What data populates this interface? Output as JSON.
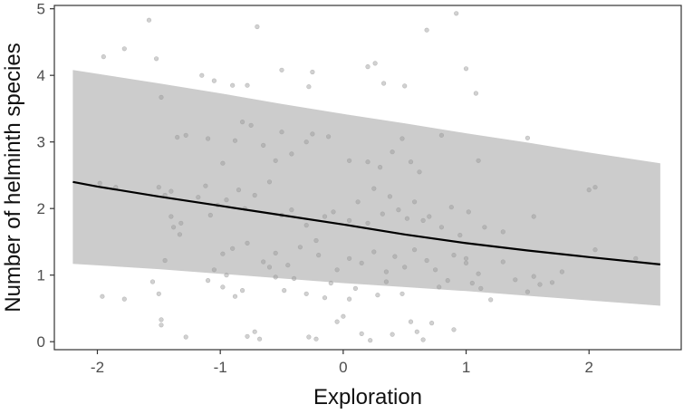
{
  "chart_data": {
    "type": "scatter",
    "xlabel": "Exploration",
    "ylabel": "Number of helminth species",
    "xlim": [
      -2.35,
      2.75
    ],
    "ylim": [
      -0.12,
      5.05
    ],
    "xticks": [
      -2,
      -1,
      0,
      1,
      2
    ],
    "xtick_labels": [
      "-2",
      "-1",
      "0",
      "1",
      "2"
    ],
    "yticks": [
      0,
      1,
      2,
      3,
      4,
      5
    ],
    "ytick_labels": [
      "0",
      "1",
      "2",
      "3",
      "4",
      "5"
    ],
    "grid": false,
    "legend": "none",
    "colors": {
      "ribbon": "#cccccc",
      "line": "#000000",
      "points": "#9a9a9a",
      "axis": "#333333",
      "text": "#111111",
      "border": "#333333"
    },
    "fit_line": {
      "x": [
        -2.2,
        -2.0,
        -1.5,
        -1.0,
        -0.5,
        0.0,
        0.5,
        1.0,
        1.5,
        2.0,
        2.58
      ],
      "y": [
        2.4,
        2.33,
        2.18,
        2.04,
        1.9,
        1.76,
        1.61,
        1.48,
        1.37,
        1.27,
        1.16
      ]
    },
    "ribbon": {
      "x": [
        -2.2,
        -1.5,
        -1.0,
        -0.5,
        0.0,
        0.5,
        1.0,
        1.5,
        2.0,
        2.58
      ],
      "lower": [
        1.17,
        1.09,
        1.02,
        0.95,
        0.88,
        0.82,
        0.76,
        0.69,
        0.62,
        0.54
      ],
      "upper": [
        4.08,
        3.88,
        3.73,
        3.57,
        3.42,
        3.28,
        3.13,
        2.99,
        2.84,
        2.68
      ]
    },
    "points": [
      [
        -1.96,
        0.68
      ],
      [
        -1.78,
        0.64
      ],
      [
        -1.55,
        0.9
      ],
      [
        -1.5,
        0.72
      ],
      [
        -1.48,
        0.33
      ],
      [
        -1.48,
        0.25
      ],
      [
        -1.45,
        1.22
      ],
      [
        -1.38,
        1.72
      ],
      [
        -1.33,
        1.61
      ],
      [
        -1.28,
        0.07
      ],
      [
        -1.1,
        0.92
      ],
      [
        -1.05,
        1.08
      ],
      [
        -0.98,
        0.82
      ],
      [
        -0.95,
        1.0
      ],
      [
        -0.88,
        0.68
      ],
      [
        -0.82,
        0.77
      ],
      [
        -0.78,
        0.08
      ],
      [
        -0.72,
        0.15
      ],
      [
        -0.68,
        0.04
      ],
      [
        -0.6,
        1.12
      ],
      [
        -0.55,
        0.97
      ],
      [
        -0.48,
        0.77
      ],
      [
        -0.4,
        0.95
      ],
      [
        -0.3,
        0.72
      ],
      [
        -0.28,
        0.07
      ],
      [
        -0.22,
        0.04
      ],
      [
        -0.15,
        0.66
      ],
      [
        -0.1,
        0.88
      ],
      [
        -0.05,
        0.3
      ],
      [
        0.0,
        0.38
      ],
      [
        0.05,
        0.64
      ],
      [
        0.1,
        0.8
      ],
      [
        0.15,
        0.12
      ],
      [
        0.22,
        0.02
      ],
      [
        0.28,
        0.7
      ],
      [
        0.35,
        0.9
      ],
      [
        0.4,
        0.11
      ],
      [
        0.48,
        0.72
      ],
      [
        0.55,
        0.3
      ],
      [
        0.6,
        0.15
      ],
      [
        0.65,
        0.03
      ],
      [
        0.72,
        0.28
      ],
      [
        0.78,
        0.82
      ],
      [
        0.85,
        0.92
      ],
      [
        0.9,
        0.18
      ],
      [
        1.0,
        1.18
      ],
      [
        1.05,
        0.88
      ],
      [
        1.12,
        0.8
      ],
      [
        1.2,
        0.63
      ],
      [
        1.3,
        1.2
      ],
      [
        1.4,
        0.93
      ],
      [
        1.5,
        0.75
      ],
      [
        1.55,
        0.98
      ],
      [
        1.6,
        0.86
      ],
      [
        1.7,
        0.89
      ],
      [
        1.78,
        1.05
      ],
      [
        2.05,
        1.38
      ],
      [
        2.38,
        1.25
      ],
      [
        -1.58,
        4.83
      ],
      [
        -1.52,
        4.25
      ],
      [
        -1.48,
        3.67
      ],
      [
        -1.35,
        3.07
      ],
      [
        -1.15,
        4.0
      ],
      [
        -1.05,
        3.92
      ],
      [
        -0.9,
        3.85
      ],
      [
        -0.78,
        3.85
      ],
      [
        -0.7,
        4.73
      ],
      [
        -0.5,
        4.08
      ],
      [
        -0.28,
        3.83
      ],
      [
        -0.25,
        4.05
      ],
      [
        0.2,
        4.13
      ],
      [
        0.26,
        4.18
      ],
      [
        0.33,
        3.88
      ],
      [
        0.5,
        3.84
      ],
      [
        0.68,
        4.68
      ],
      [
        0.92,
        4.93
      ],
      [
        1.0,
        4.1
      ],
      [
        1.08,
        3.73
      ],
      [
        1.5,
        3.06
      ],
      [
        -1.95,
        4.28
      ],
      [
        -1.78,
        4.4
      ],
      [
        -1.98,
        2.38
      ],
      [
        -1.85,
        2.32
      ],
      [
        -1.5,
        2.32
      ],
      [
        -1.45,
        2.2
      ],
      [
        -1.4,
        1.88
      ],
      [
        -1.4,
        2.26
      ],
      [
        -1.32,
        1.78
      ],
      [
        -1.18,
        2.17
      ],
      [
        -1.12,
        2.34
      ],
      [
        -1.08,
        1.9
      ],
      [
        -1.02,
        2.05
      ],
      [
        -0.95,
        2.13
      ],
      [
        -0.85,
        2.28
      ],
      [
        -0.8,
        2.0
      ],
      [
        -0.72,
        2.2
      ],
      [
        -0.6,
        2.4
      ],
      [
        -0.5,
        1.9
      ],
      [
        -0.42,
        1.98
      ],
      [
        -0.3,
        1.75
      ],
      [
        -0.22,
        1.52
      ],
      [
        -0.15,
        1.88
      ],
      [
        -0.08,
        1.95
      ],
      [
        0.05,
        1.82
      ],
      [
        0.12,
        2.1
      ],
      [
        0.2,
        1.78
      ],
      [
        0.25,
        2.3
      ],
      [
        0.32,
        1.92
      ],
      [
        0.38,
        2.18
      ],
      [
        0.45,
        1.98
      ],
      [
        0.52,
        1.85
      ],
      [
        0.58,
        2.1
      ],
      [
        0.65,
        1.82
      ],
      [
        0.7,
        1.88
      ],
      [
        0.8,
        1.72
      ],
      [
        0.88,
        2.02
      ],
      [
        0.95,
        1.6
      ],
      [
        1.02,
        1.95
      ],
      [
        1.15,
        1.72
      ],
      [
        1.3,
        1.65
      ],
      [
        1.55,
        1.88
      ],
      [
        2.0,
        2.28
      ],
      [
        2.05,
        2.32
      ],
      [
        -1.28,
        3.1
      ],
      [
        -1.1,
        3.05
      ],
      [
        -0.98,
        2.68
      ],
      [
        -0.88,
        3.02
      ],
      [
        -0.82,
        3.3
      ],
      [
        -0.75,
        3.25
      ],
      [
        -0.65,
        2.95
      ],
      [
        -0.55,
        2.72
      ],
      [
        -0.5,
        3.15
      ],
      [
        -0.42,
        2.82
      ],
      [
        -0.3,
        3.0
      ],
      [
        -0.25,
        3.12
      ],
      [
        -0.12,
        3.08
      ],
      [
        0.05,
        2.72
      ],
      [
        0.2,
        2.7
      ],
      [
        0.3,
        2.62
      ],
      [
        0.4,
        2.85
      ],
      [
        0.48,
        3.05
      ],
      [
        0.55,
        2.7
      ],
      [
        0.62,
        2.55
      ],
      [
        0.8,
        3.1
      ],
      [
        1.1,
        2.72
      ],
      [
        -0.98,
        1.32
      ],
      [
        -0.9,
        1.4
      ],
      [
        -0.78,
        1.48
      ],
      [
        -0.65,
        1.2
      ],
      [
        -0.55,
        1.33
      ],
      [
        -0.45,
        1.15
      ],
      [
        -0.35,
        1.42
      ],
      [
        -0.2,
        1.3
      ],
      [
        -0.05,
        1.08
      ],
      [
        0.05,
        1.25
      ],
      [
        0.15,
        1.18
      ],
      [
        0.25,
        1.35
      ],
      [
        0.35,
        1.05
      ],
      [
        0.42,
        1.28
      ],
      [
        0.5,
        1.12
      ],
      [
        0.58,
        1.38
      ],
      [
        0.68,
        1.22
      ],
      [
        0.75,
        1.08
      ],
      [
        0.9,
        1.3
      ],
      [
        1.0,
        1.25
      ],
      [
        1.1,
        1.02
      ]
    ]
  }
}
